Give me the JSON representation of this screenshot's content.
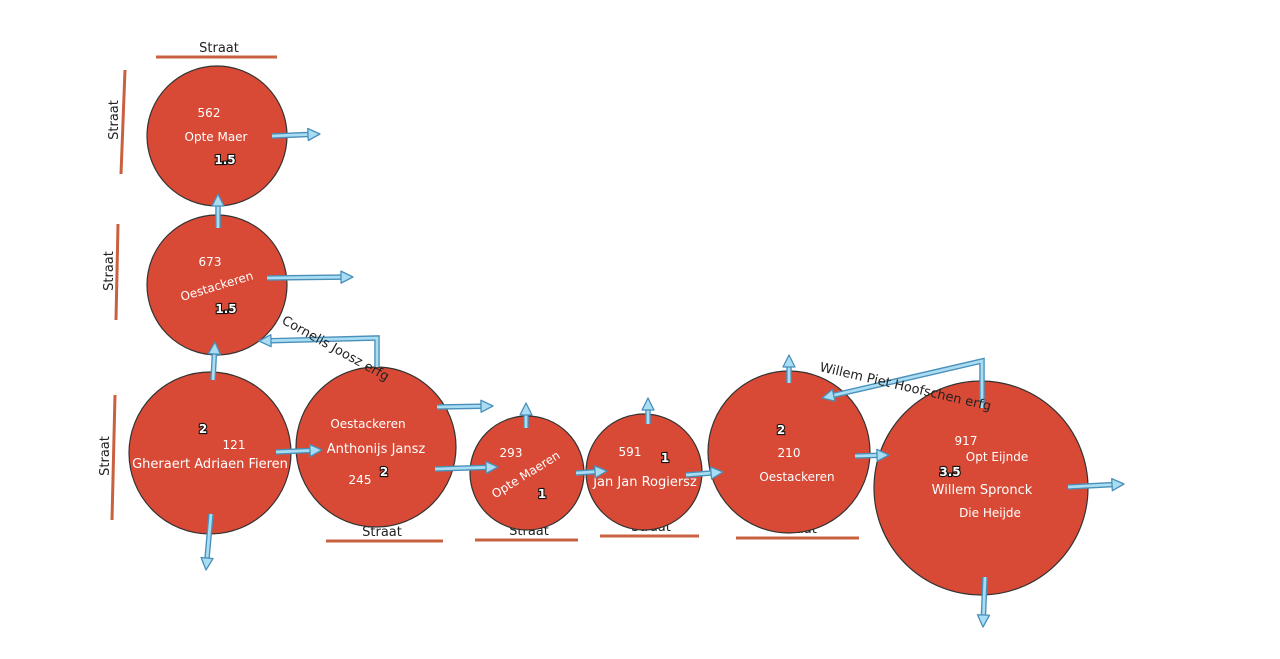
{
  "colors": {
    "parcel_fill": "#d84a36",
    "parcel_stroke": "#333333",
    "street_line": "#c9603f",
    "arrow_fill": "#a8ddf3",
    "arrow_outline": "#4a8fb8"
  },
  "parcels": {
    "p562": {
      "number": "562",
      "place": "Opte Maer",
      "size": "1.5"
    },
    "p673": {
      "number": "673",
      "place": "Oestackeren",
      "size": "1.5"
    },
    "p121": {
      "number": "121",
      "size": "2",
      "owner": "Gheraert Adriaen Fieren"
    },
    "p245": {
      "number": "245",
      "place": "Oestackeren",
      "size": "2",
      "owner": "Anthonijs Jansz"
    },
    "p293": {
      "number": "293",
      "place": "Opte Maeren",
      "size": "1"
    },
    "p591": {
      "number": "591",
      "size": "1",
      "owner": "Jan Jan Rogiersz"
    },
    "p210": {
      "number": "210",
      "place": "Oestackeren",
      "size": "2"
    },
    "p917": {
      "number": "917",
      "place": "Opt Eijnde",
      "size": "3.5",
      "owner": "Willem Spronck",
      "place2": "Die Heijde"
    }
  },
  "streets": {
    "top": "Straat",
    "left1": "Straat",
    "left2": "Straat",
    "left3": "Straat",
    "b1": "Straat",
    "b2": "Straat",
    "b3": "Straat",
    "b4": "Straat"
  },
  "annotations": {
    "cornelis": "Cornelis Joosz erfg",
    "willem_piet": "Willem Piet Hoofschen erfg"
  }
}
